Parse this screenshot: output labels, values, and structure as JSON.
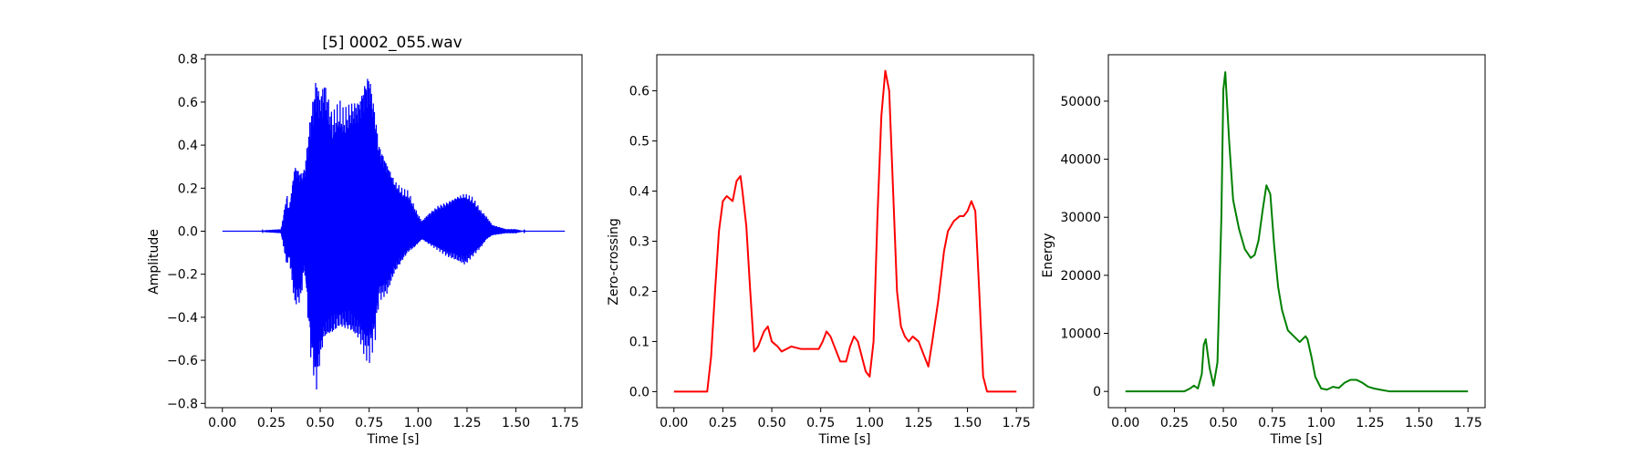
{
  "chart_data": [
    {
      "type": "line",
      "title": "[5] 0002_055.wav",
      "xlabel": "Time [s]",
      "ylabel": "Amplitude",
      "xlim": [
        -0.0875,
        1.8375
      ],
      "ylim": [
        -0.82,
        0.82
      ],
      "xticks": [
        0.0,
        0.25,
        0.5,
        0.75,
        1.0,
        1.25,
        1.5,
        1.75
      ],
      "xtick_labels": [
        "0.00",
        "0.25",
        "0.50",
        "0.75",
        "1.00",
        "1.25",
        "1.50",
        "1.75"
      ],
      "yticks": [
        -0.8,
        -0.6,
        -0.4,
        -0.2,
        0.0,
        0.2,
        0.4,
        0.6,
        0.8
      ],
      "ytick_labels": [
        "−0.8",
        "−0.6",
        "−0.4",
        "−0.2",
        "0.0",
        "0.2",
        "0.4",
        "0.6",
        "0.8"
      ],
      "color": "#0000ff",
      "grid": false,
      "series": [
        {
          "envelope_x": [
            0.0,
            0.2,
            0.22,
            0.3,
            0.33,
            0.34,
            0.37,
            0.4,
            0.42,
            0.45,
            0.48,
            0.5,
            0.52,
            0.56,
            0.6,
            0.62,
            0.65,
            0.7,
            0.73,
            0.75,
            0.78,
            0.8,
            0.84,
            0.88,
            0.92,
            0.95,
            0.98,
            1.0,
            1.02,
            1.05,
            1.1,
            1.15,
            1.2,
            1.24,
            1.28,
            1.32,
            1.35,
            1.38,
            1.45,
            1.5,
            1.52,
            1.55,
            1.75
          ],
          "envelope_upper": [
            0.0,
            0.0,
            0.005,
            0.01,
            0.18,
            0.1,
            0.32,
            0.28,
            0.3,
            0.55,
            0.74,
            0.64,
            0.72,
            0.55,
            0.61,
            0.57,
            0.6,
            0.63,
            0.72,
            0.76,
            0.57,
            0.42,
            0.33,
            0.24,
            0.2,
            0.19,
            0.12,
            0.08,
            0.05,
            0.08,
            0.12,
            0.14,
            0.17,
            0.18,
            0.16,
            0.1,
            0.07,
            0.03,
            0.01,
            0.01,
            0.005,
            0.0,
            0.0
          ],
          "envelope_lower": [
            0.0,
            0.0,
            -0.005,
            -0.01,
            -0.17,
            -0.12,
            -0.35,
            -0.33,
            -0.18,
            -0.58,
            -0.76,
            -0.62,
            -0.52,
            -0.5,
            -0.46,
            -0.47,
            -0.48,
            -0.52,
            -0.6,
            -0.62,
            -0.52,
            -0.33,
            -0.3,
            -0.2,
            -0.14,
            -0.1,
            -0.08,
            -0.06,
            -0.04,
            -0.06,
            -0.09,
            -0.12,
            -0.14,
            -0.16,
            -0.12,
            -0.08,
            -0.04,
            -0.02,
            -0.01,
            -0.01,
            -0.005,
            0.0,
            0.0
          ]
        }
      ]
    },
    {
      "type": "line",
      "title": "",
      "xlabel": "Time [s]",
      "ylabel": "Zero-crossing",
      "xlim": [
        -0.0875,
        1.8375
      ],
      "ylim": [
        -0.032,
        0.672
      ],
      "xticks": [
        0.0,
        0.25,
        0.5,
        0.75,
        1.0,
        1.25,
        1.5,
        1.75
      ],
      "xtick_labels": [
        "0.00",
        "0.25",
        "0.50",
        "0.75",
        "1.00",
        "1.25",
        "1.50",
        "1.75"
      ],
      "yticks": [
        0.0,
        0.1,
        0.2,
        0.3,
        0.4,
        0.5,
        0.6
      ],
      "ytick_labels": [
        "0.0",
        "0.1",
        "0.2",
        "0.3",
        "0.4",
        "0.5",
        "0.6"
      ],
      "color": "#ff0000",
      "grid": false,
      "series": [
        {
          "x": [
            0.0,
            0.17,
            0.19,
            0.21,
            0.23,
            0.25,
            0.27,
            0.3,
            0.32,
            0.34,
            0.35,
            0.37,
            0.39,
            0.41,
            0.43,
            0.46,
            0.48,
            0.5,
            0.53,
            0.55,
            0.6,
            0.65,
            0.7,
            0.74,
            0.76,
            0.78,
            0.8,
            0.82,
            0.85,
            0.88,
            0.9,
            0.92,
            0.94,
            0.96,
            0.98,
            1.0,
            1.02,
            1.04,
            1.06,
            1.08,
            1.1,
            1.12,
            1.14,
            1.16,
            1.18,
            1.2,
            1.22,
            1.25,
            1.28,
            1.3,
            1.32,
            1.35,
            1.38,
            1.4,
            1.43,
            1.46,
            1.48,
            1.5,
            1.52,
            1.54,
            1.56,
            1.58,
            1.6,
            1.75
          ],
          "y": [
            0.0,
            0.0,
            0.07,
            0.2,
            0.32,
            0.38,
            0.39,
            0.38,
            0.42,
            0.43,
            0.4,
            0.33,
            0.2,
            0.08,
            0.09,
            0.12,
            0.13,
            0.1,
            0.09,
            0.08,
            0.09,
            0.085,
            0.085,
            0.085,
            0.1,
            0.12,
            0.11,
            0.09,
            0.06,
            0.06,
            0.09,
            0.11,
            0.1,
            0.07,
            0.04,
            0.03,
            0.1,
            0.35,
            0.55,
            0.64,
            0.6,
            0.4,
            0.2,
            0.13,
            0.11,
            0.1,
            0.11,
            0.1,
            0.07,
            0.05,
            0.1,
            0.18,
            0.28,
            0.32,
            0.34,
            0.35,
            0.35,
            0.36,
            0.38,
            0.36,
            0.2,
            0.03,
            0.0,
            0.0
          ]
        }
      ]
    },
    {
      "type": "line",
      "title": "",
      "xlabel": "Time [s]",
      "ylabel": "Energy",
      "xlim": [
        -0.0875,
        1.8375
      ],
      "ylim": [
        -2800,
        58000
      ],
      "xticks": [
        0.0,
        0.25,
        0.5,
        0.75,
        1.0,
        1.25,
        1.5,
        1.75
      ],
      "xtick_labels": [
        "0.00",
        "0.25",
        "0.50",
        "0.75",
        "1.00",
        "1.25",
        "1.50",
        "1.75"
      ],
      "yticks": [
        0,
        10000,
        20000,
        30000,
        40000,
        50000
      ],
      "ytick_labels": [
        "0",
        "10000",
        "20000",
        "30000",
        "40000",
        "50000"
      ],
      "color": "#008000",
      "grid": false,
      "series": [
        {
          "x": [
            0.0,
            0.3,
            0.33,
            0.35,
            0.37,
            0.39,
            0.4,
            0.41,
            0.43,
            0.45,
            0.47,
            0.49,
            0.5,
            0.51,
            0.53,
            0.55,
            0.58,
            0.61,
            0.64,
            0.66,
            0.68,
            0.7,
            0.72,
            0.74,
            0.76,
            0.78,
            0.8,
            0.83,
            0.86,
            0.89,
            0.92,
            0.93,
            0.95,
            0.97,
            1.0,
            1.03,
            1.06,
            1.09,
            1.12,
            1.15,
            1.18,
            1.21,
            1.24,
            1.27,
            1.3,
            1.35,
            1.4,
            1.75
          ],
          "y": [
            0,
            0,
            500,
            1000,
            500,
            3000,
            8000,
            9000,
            4000,
            1000,
            5000,
            30000,
            52000,
            55000,
            43000,
            33000,
            28000,
            24500,
            23000,
            23500,
            26000,
            31000,
            35500,
            34000,
            25000,
            18000,
            14000,
            10500,
            9500,
            8500,
            9500,
            9000,
            6000,
            2500,
            500,
            300,
            800,
            600,
            1500,
            2000,
            2000,
            1500,
            800,
            500,
            300,
            0,
            0,
            0
          ]
        }
      ]
    }
  ]
}
